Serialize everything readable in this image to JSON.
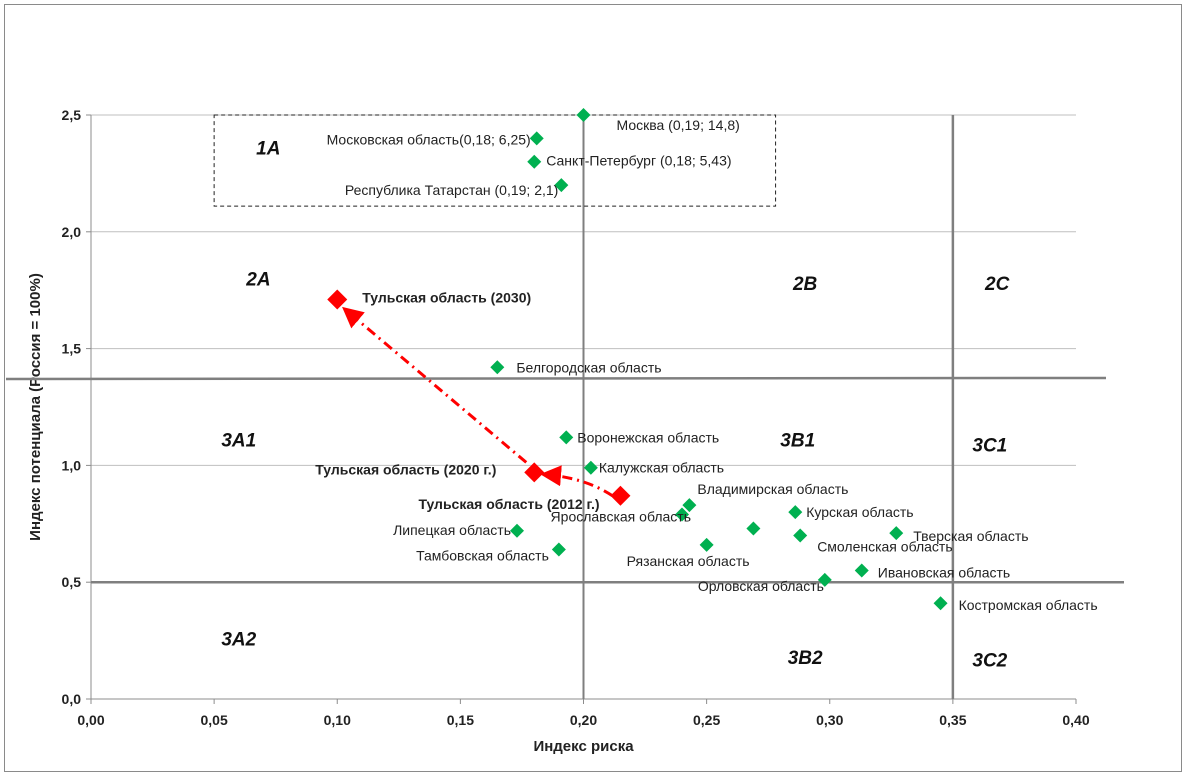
{
  "chart_data": {
    "type": "scatter",
    "title": "",
    "xlabel": "Индекс риска",
    "ylabel": "Индекс потенциала (Россия = 100%)",
    "xlim": [
      0,
      0.4
    ],
    "ylim": [
      0,
      2.5
    ],
    "x_ticks": [
      "0,00",
      "0,05",
      "0,10",
      "0,15",
      "0,20",
      "0,25",
      "0,30",
      "0,35",
      "0,40"
    ],
    "y_ticks": [
      "0,0",
      "0,5",
      "1,0",
      "1,5",
      "2,0",
      "2,5"
    ],
    "grid": "horizontal",
    "colors": {
      "region": "#00b050",
      "tula": "#ff0000",
      "divider": "#7f7f7f",
      "grid": "#bfbfbf"
    },
    "dividers": {
      "x": 0.35,
      "y": [
        1.37,
        0.5
      ]
    },
    "zone_1a_box": {
      "x": [
        0.05,
        0.278
      ],
      "y": [
        2.11,
        2.5
      ]
    },
    "series": [
      {
        "name": "",
        "marker": "diamond",
        "points": [
          {
            "label": "Москва (0,19; 14,8)",
            "x": 0.2,
            "y": 2.5
          },
          {
            "label": "Московская область(0,18; 6,25)",
            "x": 0.181,
            "y": 2.4
          },
          {
            "label": "Санкт-Петербург (0,18; 5,43)",
            "x": 0.18,
            "y": 2.3
          },
          {
            "label": "Республика Татарстан (0,19; 2,1)",
            "x": 0.191,
            "y": 2.2
          },
          {
            "label": "Белгородская область",
            "x": 0.165,
            "y": 1.42
          },
          {
            "label": "Воронежская область",
            "x": 0.193,
            "y": 1.12
          },
          {
            "label": "Калужская область",
            "x": 0.203,
            "y": 0.99
          },
          {
            "label": "Владимирская область",
            "x": 0.243,
            "y": 0.83
          },
          {
            "label": "Ярославская область",
            "x": 0.24,
            "y": 0.79
          },
          {
            "label": "Липецкая область",
            "x": 0.173,
            "y": 0.72
          },
          {
            "label": "Тамбовская область",
            "x": 0.19,
            "y": 0.64
          },
          {
            "label": "",
            "x": 0.269,
            "y": 0.73
          },
          {
            "label": "Курская область",
            "x": 0.286,
            "y": 0.8
          },
          {
            "label": "Тверская область",
            "x": 0.327,
            "y": 0.71
          },
          {
            "label": "Смоленская область",
            "x": 0.288,
            "y": 0.7
          },
          {
            "label": "Рязанская область",
            "x": 0.25,
            "y": 0.66
          },
          {
            "label": "Ивановская область",
            "x": 0.313,
            "y": 0.55
          },
          {
            "label": "Орловская область",
            "x": 0.298,
            "y": 0.51
          },
          {
            "label": "Костромская область",
            "x": 0.345,
            "y": 0.41
          }
        ]
      },
      {
        "name": "",
        "marker": "diamond",
        "points": [
          {
            "label": "Тульская область (2012 г.)",
            "x": 0.215,
            "y": 0.87
          },
          {
            "label": "Тульская область (2020 г.)",
            "x": 0.18,
            "y": 0.97
          },
          {
            "label": "Тульская область (2030)",
            "x": 0.1,
            "y": 1.71
          }
        ]
      }
    ],
    "zones": [
      "1A",
      "2A",
      "2B",
      "2C",
      "3A1",
      "3B1",
      "3C1",
      "3A2",
      "3B2",
      "3C2"
    ]
  }
}
